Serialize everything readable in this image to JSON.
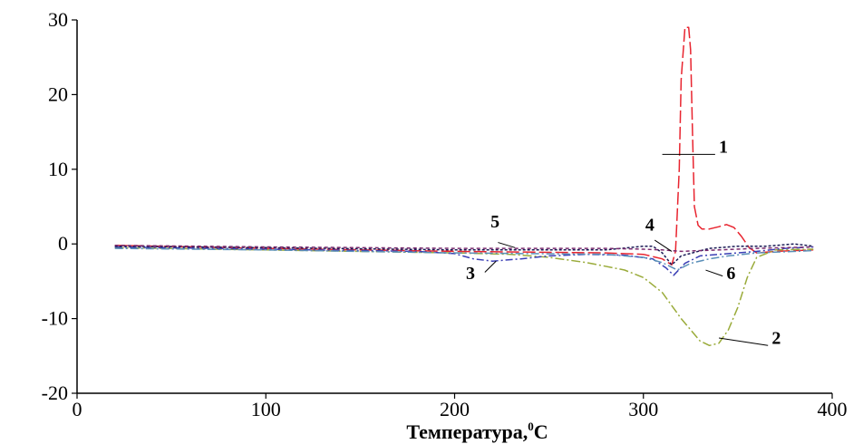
{
  "chart_data": {
    "type": "line",
    "title": "",
    "xlabel": "Температура,",
    "xlabel_sup": "0",
    "xlabel_unit": "C",
    "ylabel": "",
    "xlim": [
      0,
      400
    ],
    "ylim": [
      -20,
      30
    ],
    "xticks": [
      0,
      100,
      200,
      300,
      400
    ],
    "yticks": [
      30,
      20,
      10,
      0,
      -10,
      -20
    ],
    "grid": false,
    "legend": "none",
    "series": [
      {
        "label": "1",
        "color": "#e8242f",
        "dash": "14,4",
        "x": [
          20,
          100,
          200,
          280,
          300,
          310,
          315,
          317,
          319,
          320,
          322,
          324,
          325,
          326,
          327,
          329,
          331,
          335,
          340,
          344,
          348,
          352,
          356,
          360,
          370,
          390
        ],
        "y": [
          -0.2,
          -0.6,
          -1.0,
          -1.2,
          -1.4,
          -2.0,
          -2.8,
          -1.0,
          10.0,
          22.0,
          29.0,
          29.0,
          26.0,
          15.0,
          5.0,
          2.5,
          2.0,
          2.0,
          2.3,
          2.6,
          2.2,
          1.0,
          -0.5,
          -1.2,
          -1.0,
          -0.8
        ],
        "label_text": [
          340,
          12.2
        ]
      },
      {
        "label": "2",
        "color": "#9aab3a",
        "dash": "10,3,2,3",
        "x": [
          20,
          100,
          200,
          230,
          250,
          270,
          290,
          300,
          310,
          320,
          330,
          335,
          340,
          345,
          350,
          355,
          360,
          370,
          390
        ],
        "y": [
          -0.5,
          -0.8,
          -1.2,
          -1.4,
          -1.8,
          -2.5,
          -3.5,
          -4.5,
          -6.5,
          -10.0,
          -13.0,
          -13.6,
          -13.3,
          -11.5,
          -8.5,
          -4.5,
          -1.8,
          -0.8,
          -0.7
        ],
        "label_text": [
          368,
          -13.4
        ]
      },
      {
        "label": "3",
        "color": "#3b3fb5",
        "dash": "8,3,2,3",
        "x": [
          20,
          100,
          180,
          200,
          210,
          220,
          235,
          250,
          270,
          290,
          305,
          312,
          316,
          322,
          330,
          345,
          360,
          375,
          390
        ],
        "y": [
          -0.4,
          -0.7,
          -1.0,
          -1.3,
          -2.0,
          -2.3,
          -2.0,
          -1.6,
          -1.4,
          -1.5,
          -2.0,
          -3.2,
          -4.2,
          -2.6,
          -1.6,
          -1.3,
          -1.0,
          -0.6,
          -0.4
        ],
        "label_text": [
          206,
          -4.7
        ]
      },
      {
        "label": "4",
        "color": "#1a1a55",
        "dash": "3,2",
        "x": [
          20,
          100,
          200,
          280,
          300,
          305,
          310,
          315,
          320,
          335,
          350,
          365,
          380,
          390
        ],
        "y": [
          -0.3,
          -0.5,
          -0.8,
          -0.8,
          -0.3,
          -0.3,
          -1.2,
          -2.8,
          -1.6,
          -0.6,
          -0.3,
          -0.3,
          0.0,
          -0.3
        ],
        "label_text": [
          301,
          1.8
        ]
      },
      {
        "label": "5",
        "color": "#7a2a6e",
        "dash": "4,3",
        "x": [
          20,
          100,
          200,
          280,
          300,
          310,
          320,
          340,
          360,
          390
        ],
        "y": [
          -0.2,
          -0.4,
          -0.6,
          -0.6,
          -0.7,
          -0.8,
          -1.0,
          -0.8,
          -0.6,
          -0.4
        ],
        "label_text": [
          219,
          2.2
        ]
      },
      {
        "label": "6",
        "color": "#5a8fb8",
        "dash": "9,3,2,3",
        "x": [
          20,
          100,
          200,
          280,
          300,
          310,
          318,
          325,
          335,
          345,
          360,
          390
        ],
        "y": [
          -0.6,
          -0.8,
          -1.2,
          -1.4,
          -1.8,
          -2.5,
          -3.5,
          -2.6,
          -2.0,
          -1.6,
          -1.2,
          -0.9
        ],
        "label_text": [
          344,
          -4.7
        ]
      }
    ]
  }
}
